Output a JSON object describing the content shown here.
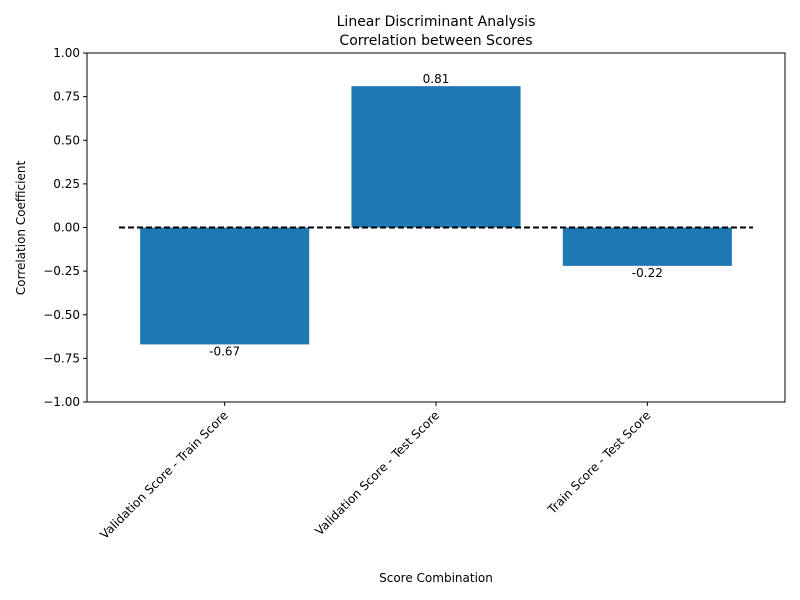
{
  "chart_data": {
    "type": "bar",
    "title": "Linear Discriminant Analysis\nCorrelation between Scores",
    "title_lines": [
      "Linear Discriminant Analysis",
      "Correlation between Scores"
    ],
    "xlabel": "Score Combination",
    "ylabel": "Correlation Coefficient",
    "categories": [
      "Validation Score - Train Score",
      "Validation Score - Test Score",
      "Train Score - Test Score"
    ],
    "values": [
      -0.67,
      0.81,
      -0.22
    ],
    "value_labels": [
      "-0.67",
      "0.81",
      "-0.22"
    ],
    "ylim": [
      -1.0,
      1.0
    ],
    "yticks": [
      -1.0,
      -0.75,
      -0.5,
      -0.25,
      0.0,
      0.25,
      0.5,
      0.75,
      1.0
    ],
    "ytick_labels": [
      "−1.00",
      "−0.75",
      "−0.50",
      "−0.25",
      "0.00",
      "0.25",
      "0.50",
      "0.75",
      "1.00"
    ],
    "reference_line": {
      "y": 0,
      "style": "dashed",
      "color": "#000000"
    },
    "grid": false,
    "bar_color": "#1f77b4"
  }
}
